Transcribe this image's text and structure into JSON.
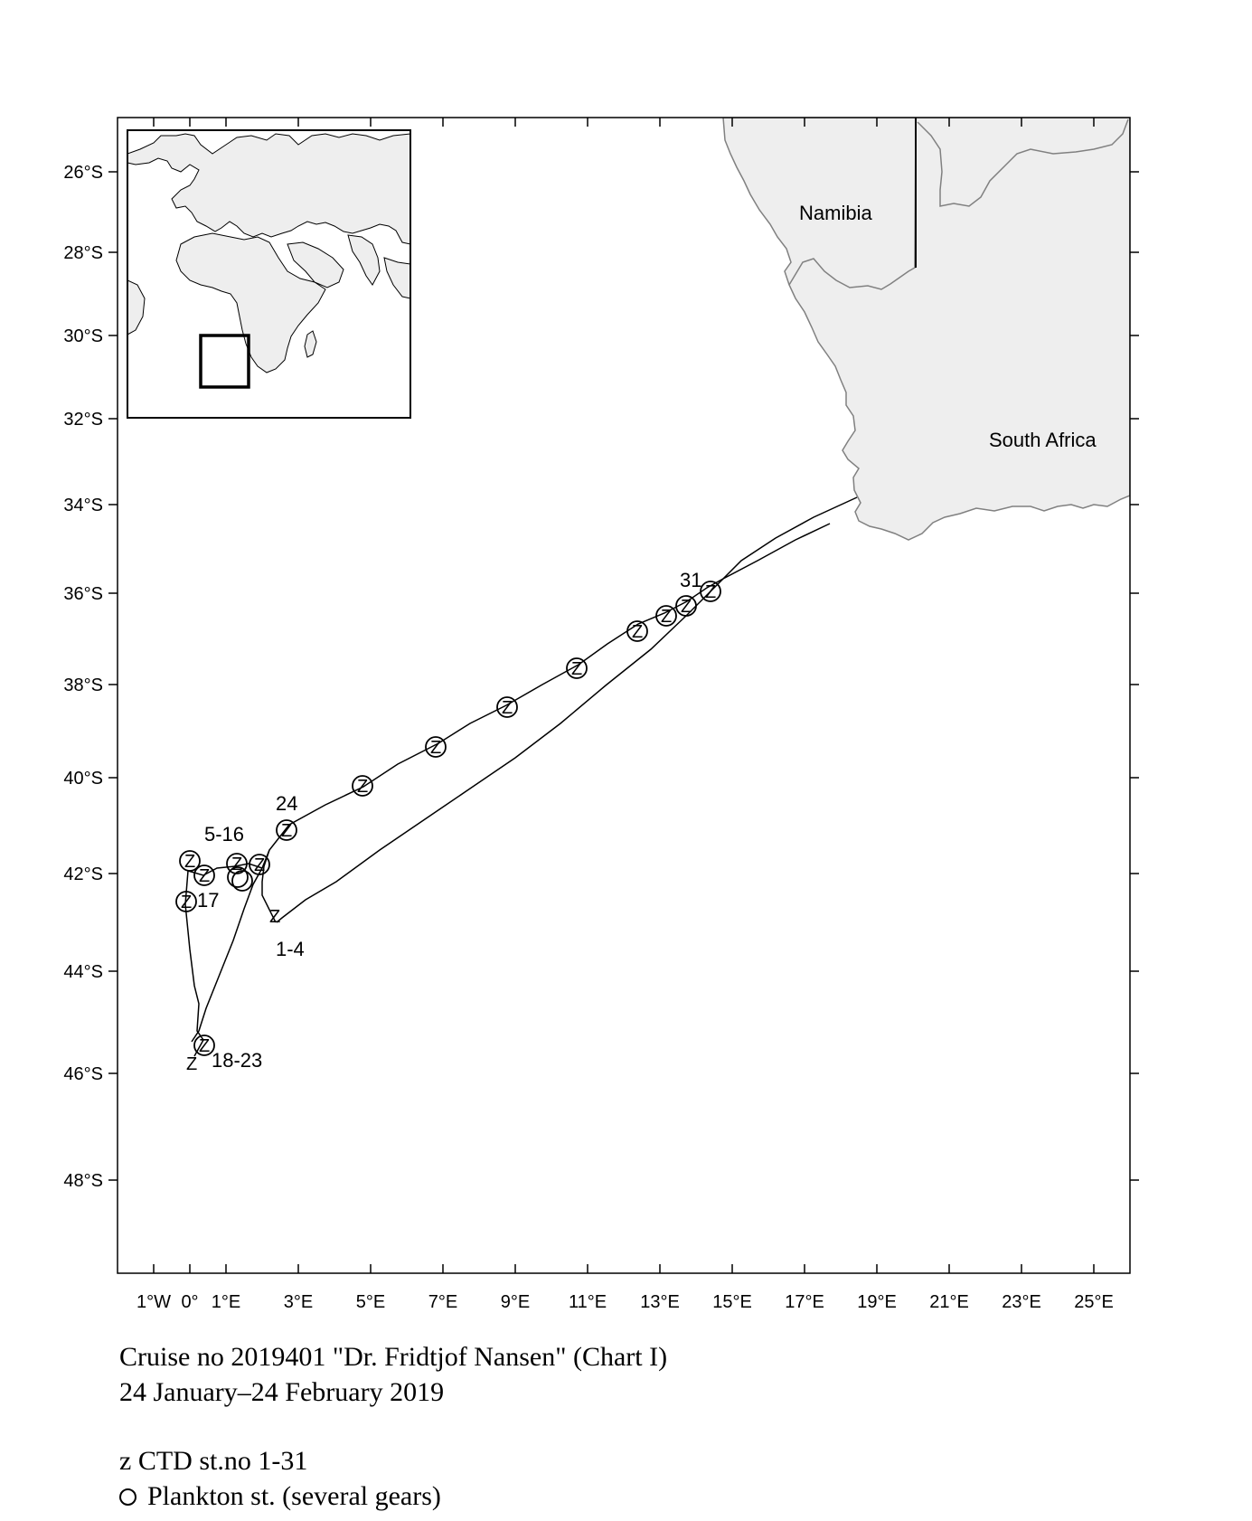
{
  "map": {
    "x_ticks": [
      "1°W",
      "0°",
      "1°E",
      "3°E",
      "5°E",
      "7°E",
      "9°E",
      "11°E",
      "13°E",
      "15°E",
      "17°E",
      "19°E",
      "21°E",
      "23°E",
      "25°E"
    ],
    "y_ticks": [
      "26°S",
      "28°S",
      "30°S",
      "32°S",
      "34°S",
      "36°S",
      "38°S",
      "40°S",
      "42°S",
      "44°S",
      "46°S",
      "48°S"
    ],
    "countries": [
      "Namibia",
      "South Africa"
    ],
    "land_color": "#eeeeee",
    "station_labels": [
      "31",
      "24",
      "5-16",
      "17",
      "1-4",
      "18-23"
    ],
    "ctd_symbol": "Z",
    "inset": {
      "content": "world map overview (Europe, Africa, Indian Ocean) with study-area box"
    }
  },
  "caption": {
    "line1": "Cruise no 2019401  \"Dr. Fridtjof Nansen\" (Chart I)",
    "line2": "24 January–24 February  2019"
  },
  "legend": {
    "ctd": "z CTD st.no 1-31",
    "plankton": "Plankton st. (several gears)",
    "plankton_icon": "circle-icon"
  }
}
